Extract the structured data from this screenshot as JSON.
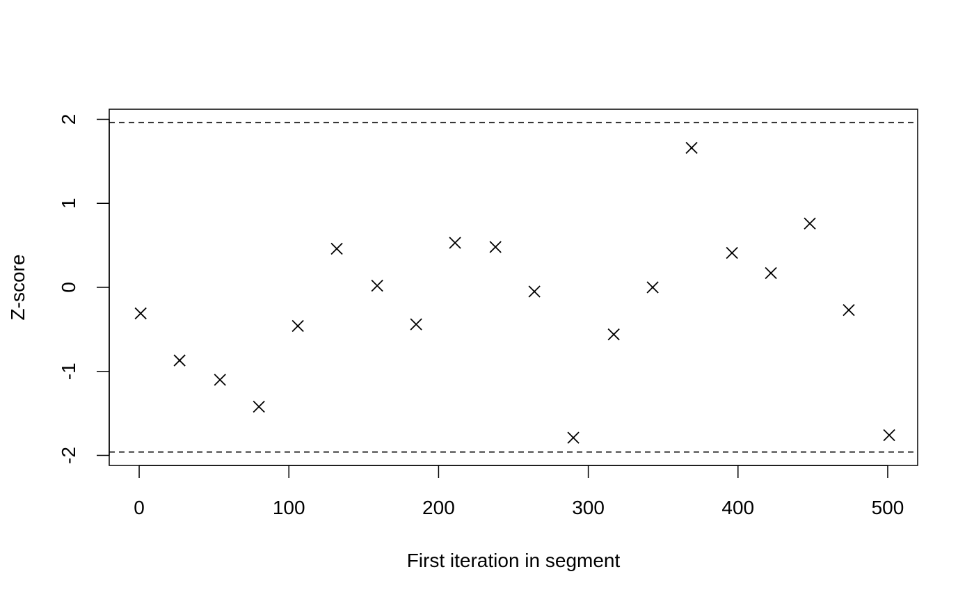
{
  "chart_data": {
    "type": "scatter",
    "title": "",
    "xlabel": "First iteration in segment",
    "ylabel": "Z-score",
    "xlim": [
      -20,
      520
    ],
    "ylim": [
      -2.12,
      2.12
    ],
    "x_ticks": [
      0,
      100,
      200,
      300,
      400,
      500
    ],
    "x_tick_labels": [
      "0",
      "100",
      "200",
      "300",
      "400",
      "500"
    ],
    "y_ticks": [
      -2,
      -1,
      0,
      1,
      2
    ],
    "y_tick_labels": [
      "-2",
      "-1",
      "0",
      "1",
      "2"
    ],
    "grid": false,
    "legend": "none",
    "marker": "x",
    "reference_lines": [
      {
        "y": 1.96,
        "style": "dashed"
      },
      {
        "y": -1.96,
        "style": "dashed"
      }
    ],
    "series": [
      {
        "x": [
          1,
          27,
          54,
          80,
          106,
          132,
          159,
          185,
          211,
          238,
          264,
          290,
          317,
          343,
          369,
          396,
          422,
          448,
          474,
          501
        ],
        "y": [
          -0.31,
          -0.87,
          -1.1,
          -1.42,
          -0.46,
          0.46,
          0.02,
          -0.44,
          0.53,
          0.48,
          -0.05,
          -1.79,
          -0.56,
          0.0,
          1.66,
          0.41,
          0.17,
          0.76,
          -0.27,
          -1.76
        ]
      }
    ],
    "colors": {
      "ink": "#000000",
      "background": "#ffffff"
    }
  }
}
